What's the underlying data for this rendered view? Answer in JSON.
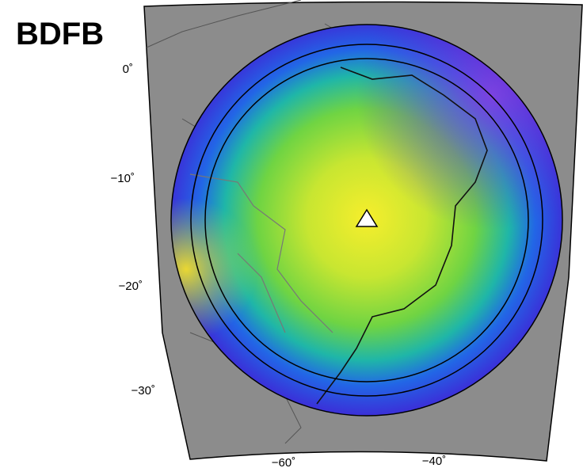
{
  "title": "BDFB",
  "map": {
    "lat_labels": [
      "0˚",
      "−10˚",
      "−20˚",
      "−30˚"
    ],
    "lon_labels": [
      "−60˚",
      "−40˚"
    ]
  }
}
